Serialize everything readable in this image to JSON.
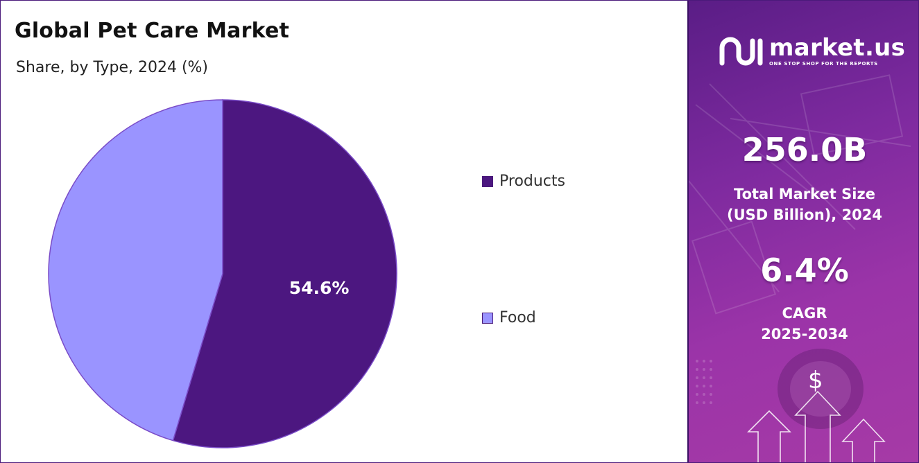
{
  "header": {
    "title": "Global Pet Care Market",
    "subtitle": "Share, by Type, 2024 (%)"
  },
  "chart_data": {
    "type": "pie",
    "title": "Global Pet Care Market",
    "subtitle": "Share, by Type, 2024 (%)",
    "categories": [
      "Products",
      "Food"
    ],
    "values": [
      54.6,
      45.4
    ],
    "data_labels": [
      "54.6%",
      ""
    ],
    "colors": [
      "#4c1780",
      "#9a94ff"
    ],
    "legend_position": "right"
  },
  "legend": {
    "items": [
      {
        "label": "Products",
        "color": "#4c1780"
      },
      {
        "label": "Food",
        "color": "#9a94ff"
      }
    ]
  },
  "sidebar": {
    "logo_name": "market.us",
    "logo_tagline": "ONE STOP SHOP FOR THE REPORTS",
    "market_size_value": "256.0B",
    "market_size_label_line1": "Total Market Size",
    "market_size_label_line2": "(USD Billion), 2024",
    "cagr_value": "6.4%",
    "cagr_label_line1": "CAGR",
    "cagr_label_line2": "2025-2034",
    "dollar_symbol": "$",
    "colors": {
      "panel_start": "#5a1d86",
      "panel_end": "#a63aa6"
    }
  }
}
